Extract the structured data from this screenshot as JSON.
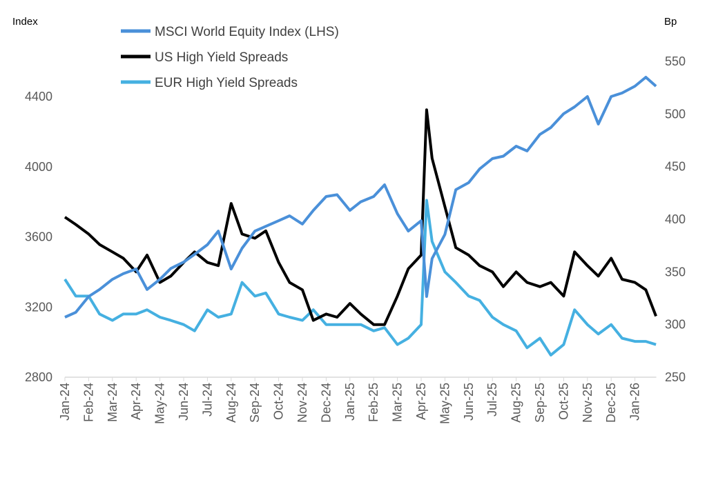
{
  "chart_data": {
    "type": "line",
    "left_axis": {
      "label": "Index",
      "ylim": [
        2800,
        4400
      ],
      "ticks": [
        2800,
        3200,
        3600,
        4000,
        4400
      ]
    },
    "right_axis": {
      "label": "Bp",
      "ylim": [
        250,
        550
      ],
      "ticks": [
        250,
        300,
        350,
        400,
        450,
        500,
        550
      ]
    },
    "x_tick_labels": [
      "Jan-24",
      "Feb-24",
      "Mar-24",
      "Apr-24",
      "May-24",
      "Jun-24",
      "Jul-24",
      "Aug-24",
      "Sep-24",
      "Oct-24",
      "Nov-24",
      "Dec-24",
      "Jan-25",
      "Feb-25",
      "Mar-25",
      "Apr-25",
      "May-25",
      "Jun-25",
      "Jul-25",
      "Aug-25",
      "Sep-25",
      "Oct-25",
      "Nov-25",
      "Dec-25",
      "Jan-26"
    ],
    "grid": false,
    "legend": "top-left",
    "x": [
      "2024-01-01",
      "2024-01-15",
      "2024-02-01",
      "2024-02-15",
      "2024-03-01",
      "2024-03-15",
      "2024-04-01",
      "2024-04-15",
      "2024-05-01",
      "2024-05-15",
      "2024-06-01",
      "2024-06-15",
      "2024-07-01",
      "2024-07-15",
      "2024-08-01",
      "2024-08-15",
      "2024-09-01",
      "2024-09-15",
      "2024-10-01",
      "2024-10-15",
      "2024-11-01",
      "2024-11-15",
      "2024-12-01",
      "2024-12-15",
      "2025-01-01",
      "2025-01-15",
      "2025-02-01",
      "2025-02-15",
      "2025-03-01",
      "2025-03-15",
      "2025-04-01",
      "2025-04-08",
      "2025-04-15",
      "2025-05-01",
      "2025-05-15",
      "2025-06-01",
      "2025-06-15",
      "2025-07-01",
      "2025-07-15",
      "2025-08-01",
      "2025-08-15",
      "2025-09-01",
      "2025-09-15",
      "2025-10-01",
      "2025-10-15",
      "2025-11-01",
      "2025-11-15",
      "2025-12-01",
      "2025-12-15",
      "2026-01-01",
      "2026-01-15",
      "2026-01-28"
    ],
    "series": [
      {
        "name": "MSCI World Equity Index (LHS)",
        "axis": "left",
        "color": "#4a90d9",
        "values": [
          3142,
          3170,
          3260,
          3300,
          3358,
          3390,
          3417,
          3300,
          3358,
          3420,
          3456,
          3500,
          3555,
          3633,
          3417,
          3535,
          3633,
          3660,
          3692,
          3720,
          3673,
          3751,
          3830,
          3840,
          3751,
          3800,
          3830,
          3897,
          3732,
          3633,
          3692,
          3260,
          3476,
          3614,
          3869,
          3909,
          3987,
          4046,
          4060,
          4117,
          4090,
          4184,
          4223,
          4302,
          4341,
          4400,
          4243,
          4400,
          4420,
          4459,
          4510,
          4459
        ]
      },
      {
        "name": "US High Yield Spreads",
        "axis": "right",
        "color": "#000000",
        "values": [
          402,
          395,
          386,
          376,
          369,
          363,
          350,
          366,
          340,
          346,
          359,
          369,
          359,
          356,
          415,
          386,
          382,
          389,
          359,
          340,
          333,
          304,
          310,
          307,
          320,
          310,
          300,
          300,
          327,
          353,
          366,
          504,
          458,
          412,
          373,
          366,
          356,
          350,
          336,
          350,
          340,
          336,
          340,
          327,
          369,
          356,
          346,
          363,
          343,
          340,
          333,
          308
        ]
      },
      {
        "name": "EUR High Yield Spreads",
        "axis": "right",
        "color": "#45b0e1",
        "values": [
          343,
          327,
          327,
          310,
          304,
          310,
          310,
          314,
          307,
          304,
          300,
          294,
          314,
          307,
          310,
          340,
          327,
          330,
          310,
          307,
          304,
          314,
          300,
          300,
          300,
          300,
          294,
          297,
          281,
          287,
          300,
          418,
          379,
          350,
          340,
          327,
          323,
          307,
          300,
          294,
          278,
          287,
          271,
          281,
          314,
          300,
          291,
          300,
          287,
          284,
          284,
          281
        ]
      }
    ]
  }
}
